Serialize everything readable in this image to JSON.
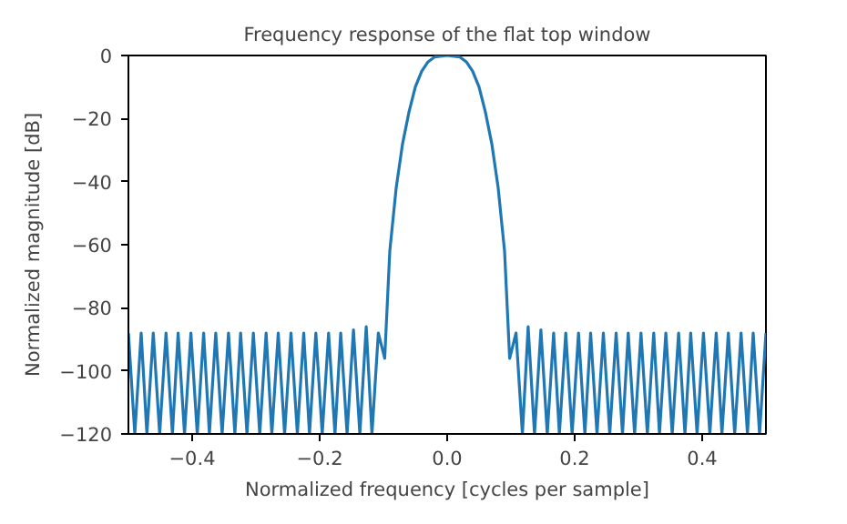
{
  "chart_data": {
    "type": "line",
    "title": "Frequency response of the flat top window",
    "xlabel": "Normalized frequency [cycles per sample]",
    "ylabel": "Normalized magnitude [dB]",
    "xlim": [
      -0.5,
      0.5
    ],
    "ylim": [
      -120,
      0
    ],
    "xticks": [
      {
        "value": -0.4,
        "label": "−0.4"
      },
      {
        "value": -0.2,
        "label": "−0.2"
      },
      {
        "value": 0,
        "label": "0.0"
      },
      {
        "value": 0.2,
        "label": "0.2"
      },
      {
        "value": 0.4,
        "label": "0.4"
      }
    ],
    "yticks": [
      {
        "value": -120,
        "label": "−120"
      },
      {
        "value": -100,
        "label": "−100"
      },
      {
        "value": -80,
        "label": "−80"
      },
      {
        "value": -60,
        "label": "−60"
      },
      {
        "value": -40,
        "label": "−40"
      },
      {
        "value": -20,
        "label": "−20"
      },
      {
        "value": 0,
        "label": "0"
      }
    ],
    "grid": false,
    "line_style": "solid",
    "marker": "none",
    "x": [
      -0.5,
      -0.49,
      -0.48,
      -0.471,
      -0.461,
      -0.451,
      -0.441,
      -0.431,
      -0.422,
      -0.412,
      -0.402,
      -0.392,
      -0.382,
      -0.373,
      -0.363,
      -0.353,
      -0.343,
      -0.333,
      -0.324,
      -0.314,
      -0.304,
      -0.294,
      -0.284,
      -0.275,
      -0.265,
      -0.255,
      -0.245,
      -0.235,
      -0.225,
      -0.216,
      -0.206,
      -0.196,
      -0.186,
      -0.176,
      -0.167,
      -0.157,
      -0.147,
      -0.137,
      -0.127,
      -0.118,
      -0.108,
      -0.098,
      -0.09,
      -0.08,
      -0.07,
      -0.06,
      -0.05,
      -0.04,
      -0.03,
      -0.02,
      0,
      0.02,
      0.03,
      0.04,
      0.05,
      0.06,
      0.07,
      0.08,
      0.09,
      0.098,
      0.108,
      0.118,
      0.127,
      0.137,
      0.147,
      0.157,
      0.167,
      0.176,
      0.186,
      0.196,
      0.206,
      0.216,
      0.225,
      0.235,
      0.245,
      0.255,
      0.265,
      0.275,
      0.284,
      0.294,
      0.304,
      0.314,
      0.324,
      0.333,
      0.343,
      0.353,
      0.363,
      0.373,
      0.382,
      0.392,
      0.402,
      0.412,
      0.422,
      0.431,
      0.441,
      0.451,
      0.461,
      0.471,
      0.48,
      0.49,
      0.5
    ],
    "series": [
      {
        "color": "#1f77b4",
        "values": [
          -88,
          -120,
          -88,
          -120,
          -88,
          -120,
          -88,
          -120,
          -88,
          -120,
          -88,
          -120,
          -88,
          -120,
          -88,
          -120,
          -88,
          -120,
          -88,
          -120,
          -88,
          -120,
          -88,
          -120,
          -88,
          -120,
          -88,
          -120,
          -88,
          -120,
          -88,
          -120,
          -88,
          -120,
          -88,
          -120,
          -87,
          -120,
          -86,
          -120,
          -88,
          -96,
          -62,
          -42,
          -28,
          -18,
          -10,
          -5,
          -2,
          -0.5,
          0,
          -0.5,
          -2,
          -5,
          -10,
          -18,
          -28,
          -42,
          -62,
          -96,
          -88,
          -120,
          -86,
          -120,
          -87,
          -120,
          -88,
          -120,
          -88,
          -120,
          -88,
          -120,
          -88,
          -120,
          -88,
          -120,
          -88,
          -120,
          -88,
          -120,
          -88,
          -120,
          -88,
          -120,
          -88,
          -120,
          -88,
          -120,
          -88,
          -120,
          -88,
          -120,
          -88,
          -120,
          -88,
          -120,
          -88,
          -120,
          -88,
          -120,
          -88
        ]
      }
    ]
  }
}
